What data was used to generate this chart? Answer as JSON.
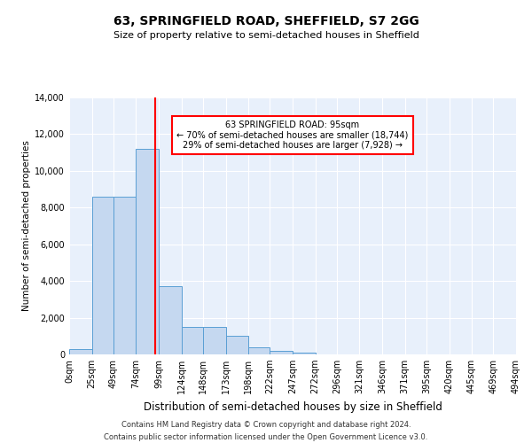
{
  "title1": "63, SPRINGFIELD ROAD, SHEFFIELD, S7 2GG",
  "title2": "Size of property relative to semi-detached houses in Sheffield",
  "xlabel": "Distribution of semi-detached houses by size in Sheffield",
  "ylabel": "Number of semi-detached properties",
  "property_size": 95,
  "annotation_line1": "63 SPRINGFIELD ROAD: 95sqm",
  "annotation_line2": "← 70% of semi-detached houses are smaller (18,744)",
  "annotation_line3": "29% of semi-detached houses are larger (7,928) →",
  "footer1": "Contains HM Land Registry data © Crown copyright and database right 2024.",
  "footer2": "Contains public sector information licensed under the Open Government Licence v3.0.",
  "bar_color": "#c5d8f0",
  "bar_edge_color": "#5a9fd4",
  "vline_color": "red",
  "background_color": "#e8f0fb",
  "bin_edges": [
    0,
    25,
    49,
    74,
    99,
    124,
    148,
    173,
    198,
    222,
    247,
    272,
    296,
    321,
    346,
    371,
    395,
    420,
    445,
    469,
    494
  ],
  "bin_labels": [
    "0sqm",
    "25sqm",
    "49sqm",
    "74sqm",
    "99sqm",
    "124sqm",
    "148sqm",
    "173sqm",
    "198sqm",
    "222sqm",
    "247sqm",
    "272sqm",
    "296sqm",
    "321sqm",
    "346sqm",
    "371sqm",
    "395sqm",
    "420sqm",
    "445sqm",
    "469sqm",
    "494sqm"
  ],
  "bar_heights": [
    300,
    8600,
    8600,
    11200,
    3700,
    1500,
    1500,
    1000,
    400,
    200,
    100,
    0,
    0,
    0,
    0,
    0,
    0,
    0,
    0,
    0
  ],
  "ylim": [
    0,
    14000
  ],
  "yticks": [
    0,
    2000,
    4000,
    6000,
    8000,
    10000,
    12000,
    14000
  ]
}
